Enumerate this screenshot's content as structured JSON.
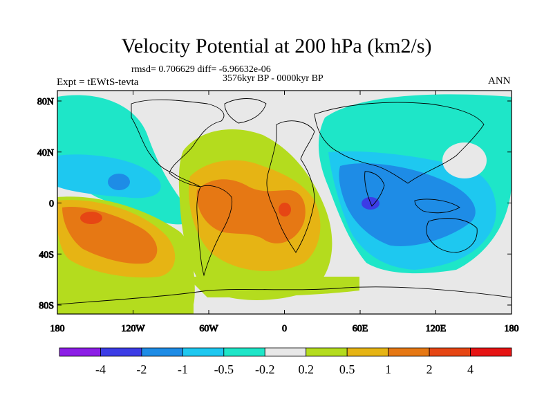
{
  "title": "Velocity Potential at 200 hPa (km2/s)",
  "stats": "rmsd= 0.706629 diff= -6.96632e-06",
  "period": "3576kyr BP - 0000kyr BP",
  "experiment": "Expt = tEWtS-tevta",
  "season": "ANN",
  "y_ticks": [
    "80N",
    "40N",
    "0",
    "40S",
    "80S"
  ],
  "x_ticks": [
    "180",
    "120W",
    "60W",
    "0",
    "60E",
    "120E",
    "180"
  ],
  "legend": {
    "labels": [
      "-4",
      "-2",
      "-1",
      "-0.5",
      "-0.2",
      "0.2",
      "0.5",
      "1",
      "2",
      "4"
    ],
    "colors": [
      "#8c1ee6",
      "#3c3ce6",
      "#1e8ce6",
      "#1ec8f0",
      "#1ee6c8",
      "#e8e8e8",
      "#b4dc1e",
      "#e6b414",
      "#e67814",
      "#e64614",
      "#e61414"
    ]
  },
  "colors": {
    "neutral": "#e8e8e8",
    "weak_negative": "#1ee6c8",
    "moderate_negative": "#1ec8f0",
    "negative": "#1e8ce6",
    "strong_negative": "#3c3ce6",
    "weak_positive": "#b4dc1e",
    "moderate_positive": "#e6b414",
    "positive": "#e67814",
    "strong_positive": "#e64614"
  }
}
